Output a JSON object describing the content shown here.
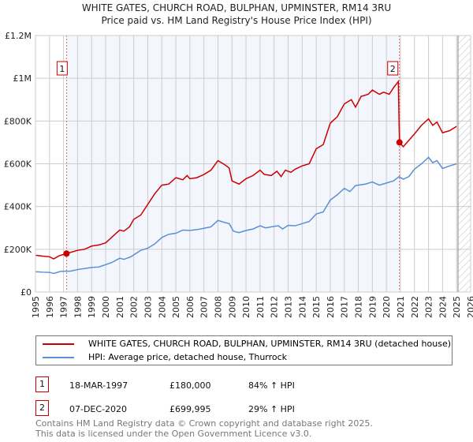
{
  "chart_data": {
    "type": "line",
    "title": "WHITE GATES, CHURCH ROAD, BULPHAN, UPMINSTER, RM14 3RU",
    "subtitle": "Price paid vs. HM Land Registry's House Price Index (HPI)",
    "xlim": [
      1995,
      2026
    ],
    "ylim": [
      0,
      1200000
    ],
    "x_ticks": [
      "1995",
      "1996",
      "1997",
      "1998",
      "1999",
      "2000",
      "2001",
      "2002",
      "2003",
      "2004",
      "2005",
      "2006",
      "2007",
      "2008",
      "2009",
      "2010",
      "2011",
      "2012",
      "2013",
      "2014",
      "2015",
      "2016",
      "2017",
      "2018",
      "2019",
      "2020",
      "2021",
      "2022",
      "2023",
      "2024",
      "2025",
      "2026"
    ],
    "y_ticks": [
      {
        "v": 0,
        "label": "£0"
      },
      {
        "v": 200000,
        "label": "£200K"
      },
      {
        "v": 400000,
        "label": "£400K"
      },
      {
        "v": 600000,
        "label": "£600K"
      },
      {
        "v": 800000,
        "label": "£800K"
      },
      {
        "v": 1000000,
        "label": "£1M"
      },
      {
        "v": 1200000,
        "label": "£1.2M"
      }
    ],
    "grid": true,
    "shaded_range": [
      1997.21,
      2020.93
    ],
    "forecast_hatch_from": 2025.1,
    "series": [
      {
        "name": "WHITE GATES, CHURCH ROAD, BULPHAN, UPMINSTER, RM14 3RU (detached house)",
        "color": "#cc0000",
        "points": [
          [
            1995,
            172000
          ],
          [
            1995.5,
            168000
          ],
          [
            1996,
            165000
          ],
          [
            1996.3,
            155000
          ],
          [
            1996.7,
            170000
          ],
          [
            1997.21,
            180000
          ],
          [
            1998,
            195000
          ],
          [
            1998.5,
            200000
          ],
          [
            1999,
            215000
          ],
          [
            1999.5,
            220000
          ],
          [
            2000,
            230000
          ],
          [
            2000.5,
            260000
          ],
          [
            2001,
            290000
          ],
          [
            2001.3,
            285000
          ],
          [
            2001.7,
            305000
          ],
          [
            2002,
            340000
          ],
          [
            2002.5,
            360000
          ],
          [
            2003,
            410000
          ],
          [
            2003.5,
            460000
          ],
          [
            2004,
            500000
          ],
          [
            2004.5,
            505000
          ],
          [
            2005,
            535000
          ],
          [
            2005.5,
            525000
          ],
          [
            2005.8,
            545000
          ],
          [
            2006,
            530000
          ],
          [
            2006.5,
            535000
          ],
          [
            2007,
            550000
          ],
          [
            2007.5,
            570000
          ],
          [
            2008,
            615000
          ],
          [
            2008.5,
            595000
          ],
          [
            2008.8,
            580000
          ],
          [
            2009,
            520000
          ],
          [
            2009.5,
            505000
          ],
          [
            2010,
            530000
          ],
          [
            2010.5,
            545000
          ],
          [
            2011,
            570000
          ],
          [
            2011.3,
            550000
          ],
          [
            2011.8,
            545000
          ],
          [
            2012.2,
            565000
          ],
          [
            2012.5,
            540000
          ],
          [
            2012.8,
            570000
          ],
          [
            2013.2,
            560000
          ],
          [
            2013.5,
            575000
          ],
          [
            2014,
            590000
          ],
          [
            2014.5,
            600000
          ],
          [
            2015,
            670000
          ],
          [
            2015.5,
            690000
          ],
          [
            2016,
            790000
          ],
          [
            2016.5,
            820000
          ],
          [
            2017,
            880000
          ],
          [
            2017.5,
            900000
          ],
          [
            2017.8,
            865000
          ],
          [
            2018.2,
            915000
          ],
          [
            2018.7,
            925000
          ],
          [
            2019,
            945000
          ],
          [
            2019.5,
            925000
          ],
          [
            2019.8,
            935000
          ],
          [
            2020.2,
            925000
          ],
          [
            2020.5,
            955000
          ],
          [
            2020.85,
            985000
          ],
          [
            2020.93,
            699995
          ],
          [
            2021.2,
            680000
          ],
          [
            2021.6,
            710000
          ],
          [
            2022,
            740000
          ],
          [
            2022.5,
            780000
          ],
          [
            2023,
            810000
          ],
          [
            2023.3,
            780000
          ],
          [
            2023.6,
            795000
          ],
          [
            2024,
            745000
          ],
          [
            2024.5,
            755000
          ],
          [
            2025,
            775000
          ]
        ]
      },
      {
        "name": "HPI: Average price, detached house, Thurrock",
        "color": "#5b8fd4",
        "points": [
          [
            1995,
            95000
          ],
          [
            1995.5,
            93000
          ],
          [
            1996,
            92000
          ],
          [
            1996.3,
            87000
          ],
          [
            1996.8,
            97000
          ],
          [
            1997.5,
            98000
          ],
          [
            1998,
            105000
          ],
          [
            1999,
            115000
          ],
          [
            1999.5,
            117000
          ],
          [
            2000,
            128000
          ],
          [
            2000.5,
            140000
          ],
          [
            2001,
            158000
          ],
          [
            2001.3,
            153000
          ],
          [
            2001.8,
            165000
          ],
          [
            2002.5,
            195000
          ],
          [
            2003,
            205000
          ],
          [
            2003.5,
            225000
          ],
          [
            2004,
            255000
          ],
          [
            2004.5,
            270000
          ],
          [
            2005,
            275000
          ],
          [
            2005.5,
            290000
          ],
          [
            2006,
            288000
          ],
          [
            2006.5,
            292000
          ],
          [
            2007,
            298000
          ],
          [
            2007.5,
            305000
          ],
          [
            2008,
            335000
          ],
          [
            2008.5,
            325000
          ],
          [
            2008.8,
            320000
          ],
          [
            2009.1,
            285000
          ],
          [
            2009.5,
            278000
          ],
          [
            2010,
            288000
          ],
          [
            2010.5,
            295000
          ],
          [
            2011,
            310000
          ],
          [
            2011.4,
            300000
          ],
          [
            2011.8,
            305000
          ],
          [
            2012.3,
            310000
          ],
          [
            2012.6,
            295000
          ],
          [
            2013,
            312000
          ],
          [
            2013.5,
            310000
          ],
          [
            2014,
            320000
          ],
          [
            2014.5,
            330000
          ],
          [
            2015,
            365000
          ],
          [
            2015.5,
            375000
          ],
          [
            2016,
            430000
          ],
          [
            2016.5,
            455000
          ],
          [
            2017,
            485000
          ],
          [
            2017.4,
            470000
          ],
          [
            2017.8,
            498000
          ],
          [
            2018.5,
            505000
          ],
          [
            2019,
            515000
          ],
          [
            2019.5,
            500000
          ],
          [
            2020,
            510000
          ],
          [
            2020.5,
            520000
          ],
          [
            2020.9,
            540000
          ],
          [
            2021.2,
            528000
          ],
          [
            2021.6,
            540000
          ],
          [
            2022,
            575000
          ],
          [
            2022.5,
            600000
          ],
          [
            2023,
            630000
          ],
          [
            2023.3,
            605000
          ],
          [
            2023.6,
            615000
          ],
          [
            2024,
            578000
          ],
          [
            2024.5,
            590000
          ],
          [
            2025,
            600000
          ]
        ]
      }
    ],
    "sales": [
      {
        "label": "1",
        "x": 1997.21,
        "y": 180000
      },
      {
        "label": "2",
        "x": 2020.93,
        "y": 699995
      }
    ]
  },
  "legend": {
    "red": "WHITE GATES, CHURCH ROAD, BULPHAN, UPMINSTER, RM14 3RU (detached house)",
    "blue": "HPI: Average price, detached house, Thurrock"
  },
  "transactions": [
    {
      "num": "1",
      "date": "18-MAR-1997",
      "price": "£180,000",
      "hpi": "84% ↑ HPI"
    },
    {
      "num": "2",
      "date": "07-DEC-2020",
      "price": "£699,995",
      "hpi": "29% ↑ HPI"
    }
  ],
  "footer": [
    "Contains HM Land Registry data © Crown copyright and database right 2025.",
    "This data is licensed under the Open Government Licence v3.0."
  ]
}
